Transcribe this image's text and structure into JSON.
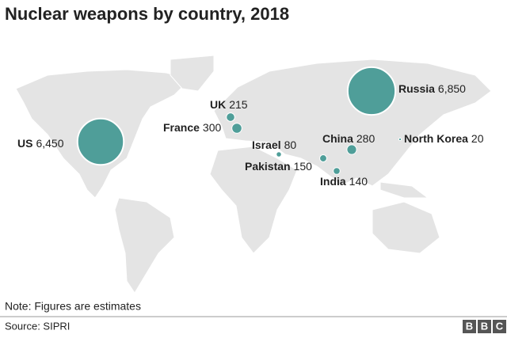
{
  "title": "Nuclear weapons by country, 2018",
  "countries": [
    {
      "name": "US",
      "value": 6450,
      "label": "6,450"
    },
    {
      "name": "Russia",
      "value": 6850,
      "label": "6,850"
    },
    {
      "name": "UK",
      "value": 215,
      "label": "215"
    },
    {
      "name": "France",
      "value": 300,
      "label": "300"
    },
    {
      "name": "Israel",
      "value": 80,
      "label": "80"
    },
    {
      "name": "Pakistan",
      "value": 150,
      "label": "150"
    },
    {
      "name": "India",
      "value": 140,
      "label": "140"
    },
    {
      "name": "China",
      "value": 280,
      "label": "280"
    },
    {
      "name": "North Korea",
      "value": 20,
      "label": "20"
    }
  ],
  "color": "#4f9e99",
  "note": "Note: Figures are estimates",
  "source": "Source: SIPRI",
  "logo": [
    "B",
    "B",
    "C"
  ]
}
